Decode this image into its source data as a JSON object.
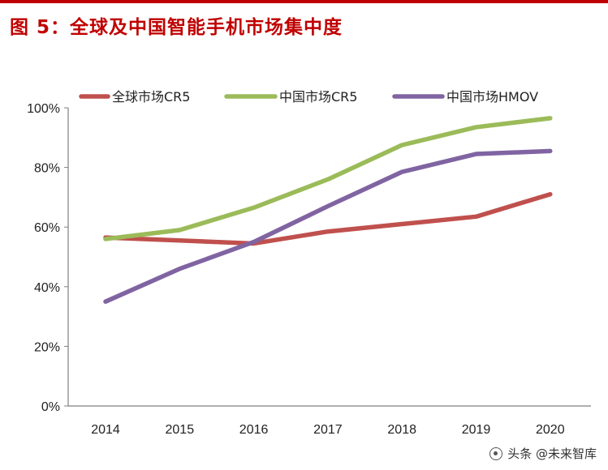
{
  "figure": {
    "title": "图 5：全球及中国智能手机市场集中度",
    "watermark": "头条 @未来智库"
  },
  "colors": {
    "title": "#c00000",
    "series": [
      "#c0504d",
      "#9bbb59",
      "#8064a2"
    ]
  },
  "chart_data": {
    "type": "line",
    "title": "",
    "xlabel": "",
    "ylabel": "",
    "x": [
      "2014",
      "2015",
      "2016",
      "2017",
      "2018",
      "2019",
      "2020"
    ],
    "ylim": [
      0,
      100
    ],
    "yticks": [
      "0%",
      "20%",
      "40%",
      "60%",
      "80%",
      "100%"
    ],
    "grid": false,
    "legend_position": "top",
    "series": [
      {
        "name": "全球市场CR5",
        "values": [
          56.5,
          55.5,
          54.5,
          58.5,
          61,
          63.5,
          71
        ]
      },
      {
        "name": "中国市场CR5",
        "values": [
          56,
          59,
          66.5,
          76,
          87.5,
          93.5,
          96.5
        ]
      },
      {
        "name": "中国市场HMOV",
        "values": [
          35,
          46,
          55,
          67,
          78.5,
          84.5,
          85.5
        ]
      }
    ]
  }
}
